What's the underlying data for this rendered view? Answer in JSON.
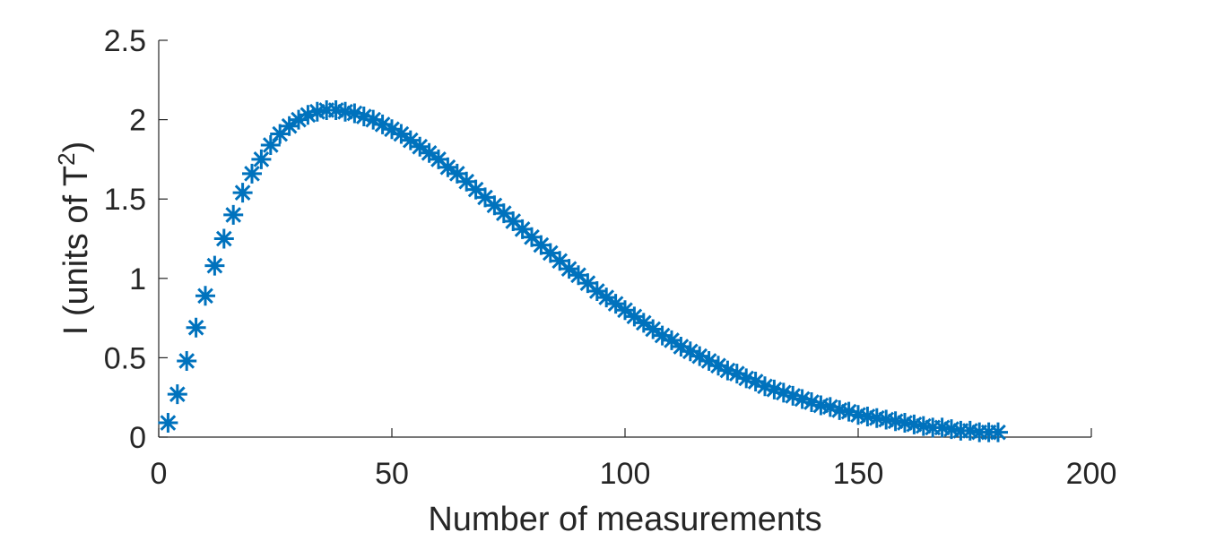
{
  "chart_data": {
    "type": "scatter",
    "title": "",
    "xlabel": "Number of measurements",
    "ylabel": {
      "prefix": "I (units of T",
      "superscript": "2",
      "suffix": ")"
    },
    "xlim": [
      0,
      200
    ],
    "ylim": [
      0,
      2.5
    ],
    "xticks": [
      "0",
      "50",
      "100",
      "150",
      "200"
    ],
    "yticks": [
      "0",
      "0.5",
      "1",
      "1.5",
      "2",
      "2.5"
    ],
    "grid": false,
    "legend": "none",
    "marker": "asterisk",
    "color": "#0072BD",
    "series": [
      {
        "x": [
          2,
          4,
          6,
          8,
          10,
          12,
          14,
          16,
          18,
          20,
          22,
          24,
          26,
          28,
          30,
          32,
          34,
          36,
          38,
          40,
          42,
          44,
          46,
          48,
          50,
          52,
          54,
          56,
          58,
          60,
          62,
          64,
          66,
          68,
          70,
          72,
          74,
          76,
          78,
          80,
          82,
          84,
          86,
          88,
          90,
          92,
          94,
          96,
          98,
          100,
          102,
          104,
          106,
          108,
          110,
          112,
          114,
          116,
          118,
          120,
          122,
          124,
          126,
          128,
          130,
          132,
          134,
          136,
          138,
          140,
          142,
          144,
          146,
          148,
          150,
          152,
          154,
          156,
          158,
          160,
          162,
          164,
          166,
          168,
          170,
          172,
          174,
          176,
          178,
          180
        ],
        "y": [
          0.09,
          0.27,
          0.48,
          0.69,
          0.89,
          1.08,
          1.25,
          1.4,
          1.54,
          1.66,
          1.75,
          1.84,
          1.91,
          1.96,
          2.0,
          2.03,
          2.05,
          2.06,
          2.06,
          2.05,
          2.04,
          2.02,
          2.0,
          1.97,
          1.94,
          1.91,
          1.87,
          1.83,
          1.79,
          1.75,
          1.7,
          1.66,
          1.61,
          1.56,
          1.51,
          1.46,
          1.41,
          1.36,
          1.31,
          1.26,
          1.21,
          1.16,
          1.11,
          1.06,
          1.02,
          0.97,
          0.92,
          0.88,
          0.84,
          0.8,
          0.76,
          0.72,
          0.68,
          0.64,
          0.61,
          0.57,
          0.54,
          0.51,
          0.48,
          0.45,
          0.42,
          0.4,
          0.37,
          0.35,
          0.32,
          0.3,
          0.28,
          0.26,
          0.24,
          0.22,
          0.2,
          0.19,
          0.17,
          0.16,
          0.14,
          0.13,
          0.12,
          0.11,
          0.1,
          0.09,
          0.08,
          0.07,
          0.06,
          0.06,
          0.05,
          0.04,
          0.04,
          0.03,
          0.03,
          0.03
        ]
      }
    ]
  }
}
